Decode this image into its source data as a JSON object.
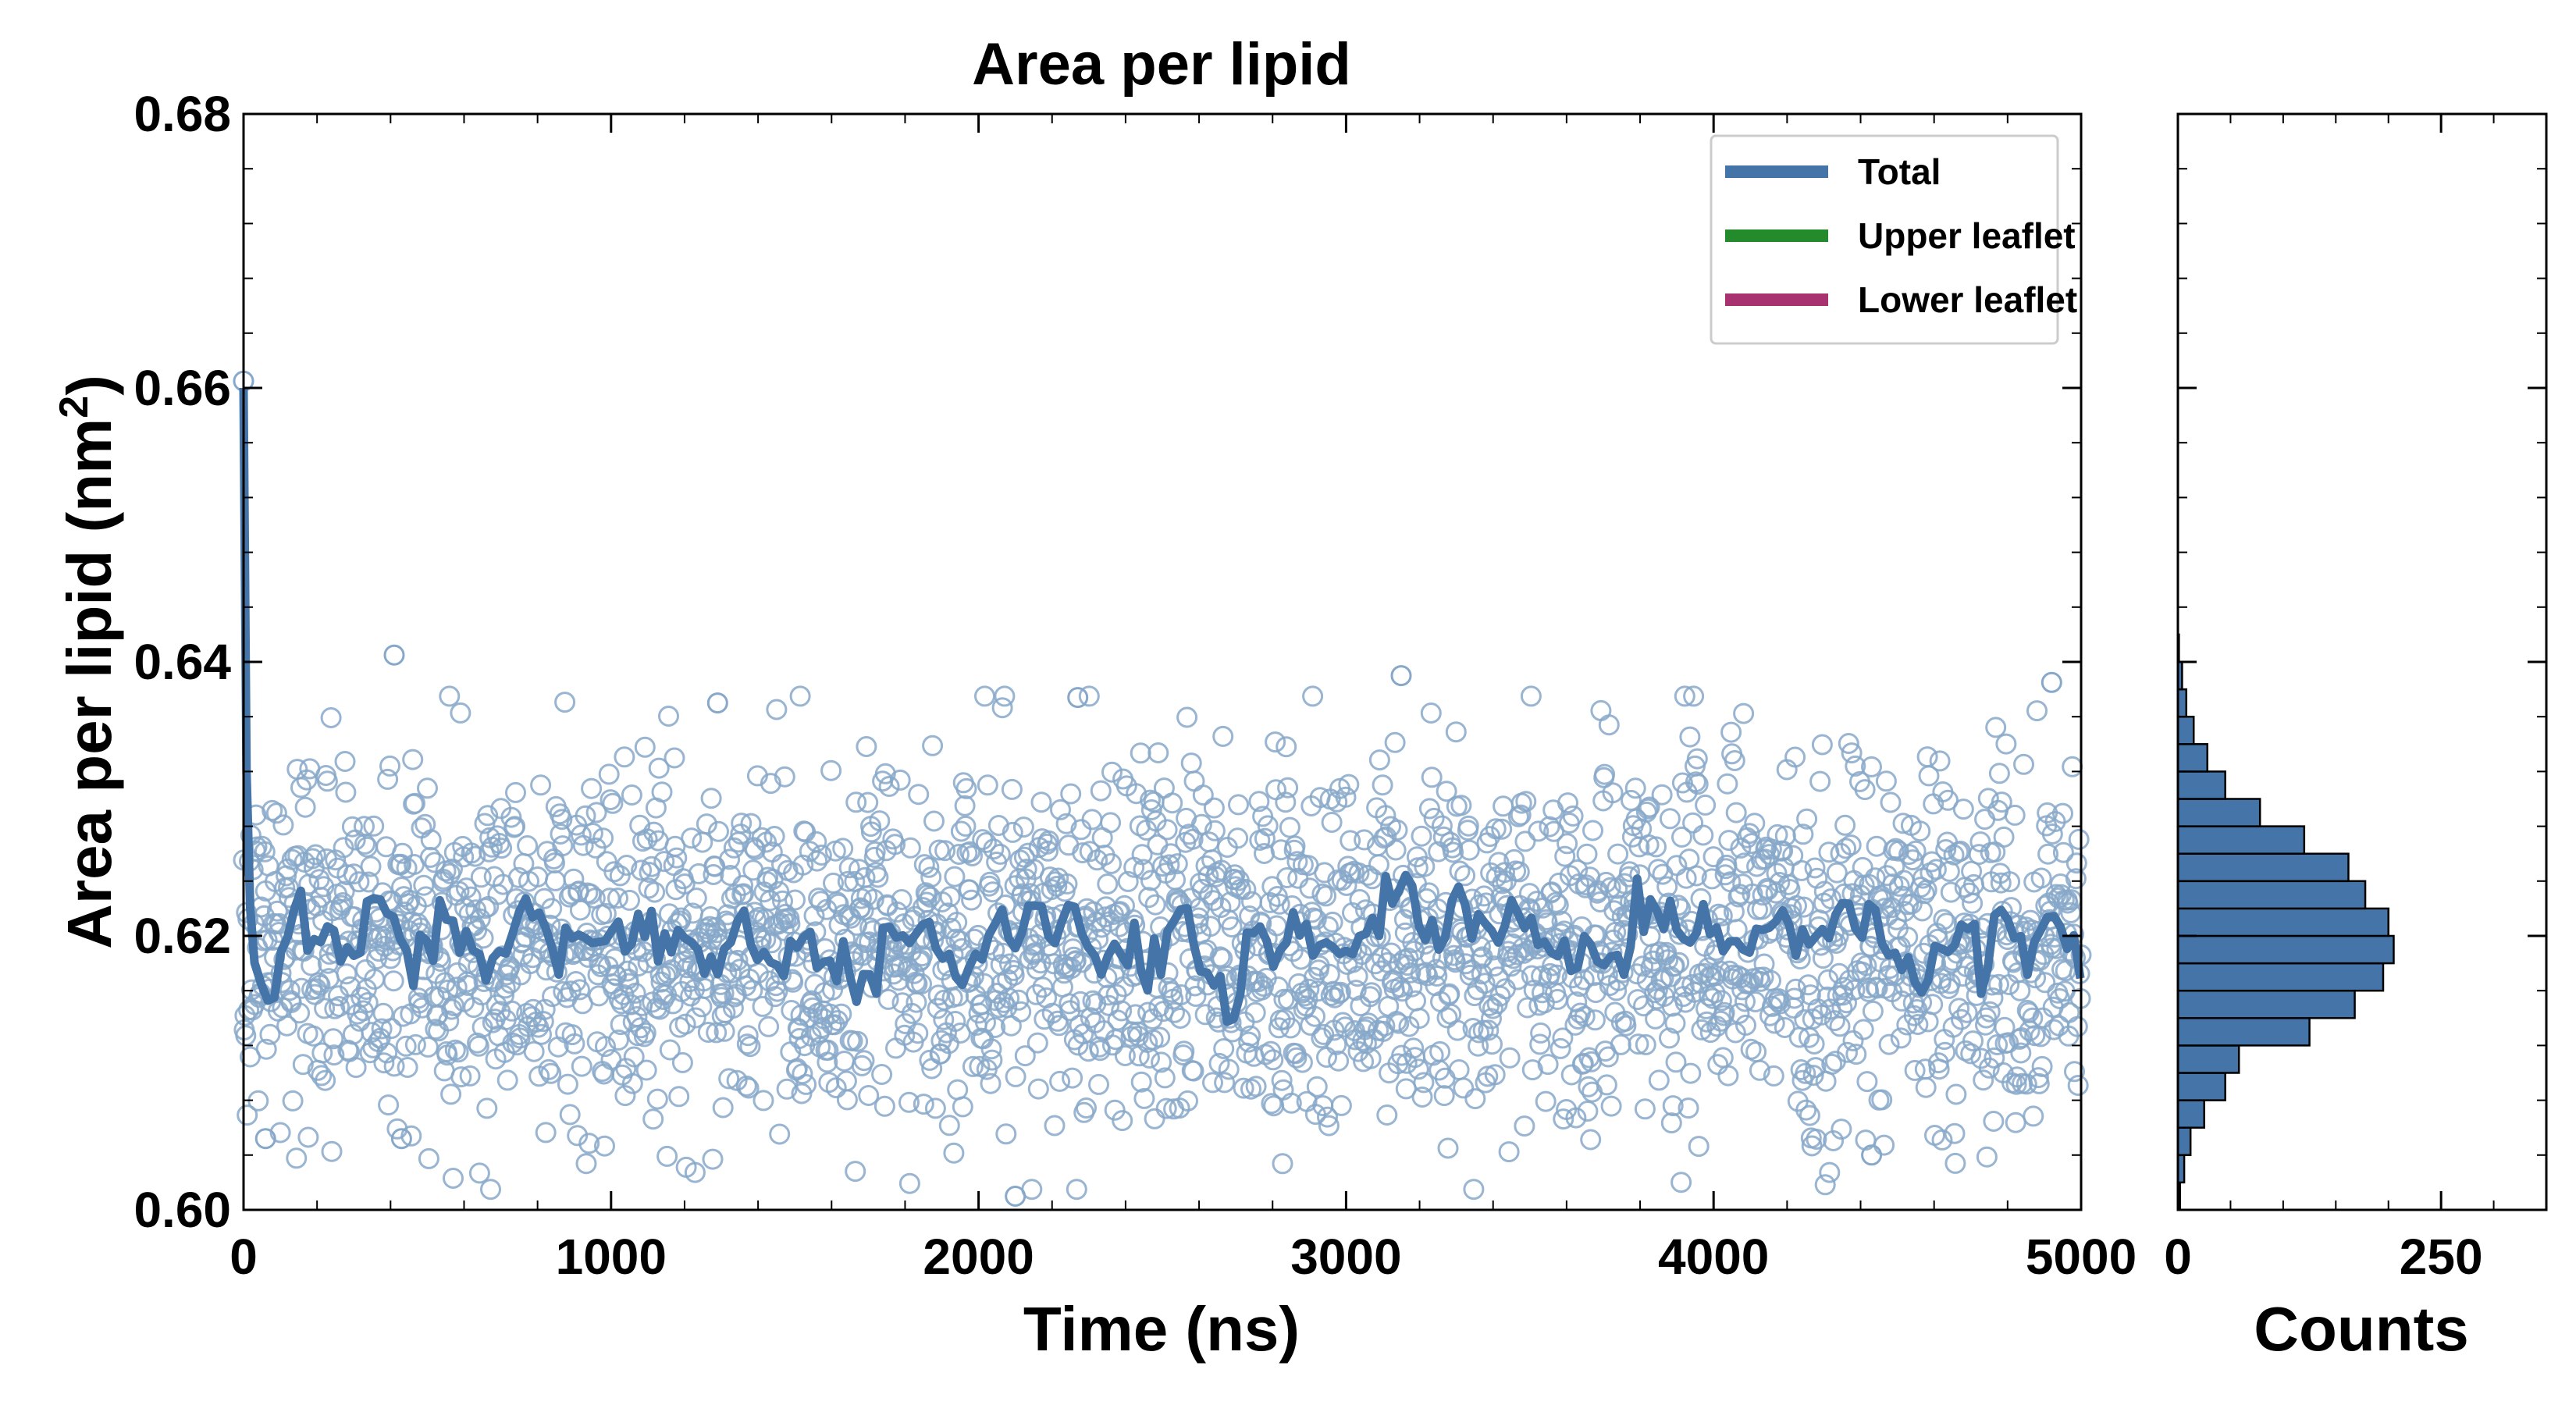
{
  "chart_data": [
    {
      "type": "scatter",
      "title": "Area per lipid",
      "xlabel": "Time (ns)",
      "ylabel": "Area per lipid (nm",
      "ylabel_sup": "2",
      "ylabel_close": ")",
      "xlim": [
        0,
        5000
      ],
      "ylim": [
        0.6,
        0.68
      ],
      "xticks": [
        "0",
        "1000",
        "2000",
        "3000",
        "4000",
        "5000"
      ],
      "yticks": [
        "0.60",
        "0.62",
        "0.64",
        "0.66",
        "0.68"
      ],
      "grid": false,
      "legend_position": "top-right",
      "legend": [
        {
          "name": "Total",
          "color": "#4575a8"
        },
        {
          "name": "Upper leaflet",
          "color": "#238b2c"
        },
        {
          "name": "Lower leaflet",
          "color": "#a8316f"
        }
      ],
      "series": [
        {
          "name": "Total",
          "kind": "scatter",
          "marker": "open-circle",
          "color": "#87a8c9",
          "points_summary": {
            "count": 2500,
            "mean": 0.6195,
            "std": 0.0065,
            "x_range": [
              0,
              5000
            ]
          },
          "notable_points": [
            {
              "x": 0,
              "y": 0.6605
            },
            {
              "x": 410,
              "y": 0.6405
            },
            {
              "x": 3150,
              "y": 0.639
            },
            {
              "x": 4920,
              "y": 0.6385
            },
            {
              "x": 2270,
              "y": 0.6374
            },
            {
              "x": 1290,
              "y": 0.637
            },
            {
              "x": 2100,
              "y": 0.601
            },
            {
              "x": 4430,
              "y": 0.604
            },
            {
              "x": 430,
              "y": 0.6052
            },
            {
              "x": 60,
              "y": 0.6052
            }
          ]
        },
        {
          "name": "Total",
          "kind": "line",
          "description": "running average",
          "color": "#4575a8",
          "values_summary": {
            "mean": 0.6195,
            "amplitude": 0.0025,
            "start_value": 0.66
          }
        }
      ]
    },
    {
      "type": "bar",
      "orientation": "horizontal",
      "xlabel": "Counts",
      "xlim": [
        0,
        350
      ],
      "xticks": [
        "0",
        "250"
      ],
      "ylim": [
        0.6,
        0.68
      ],
      "color": "#4575a8",
      "bin_centers": [
        0.601,
        0.603,
        0.605,
        0.607,
        0.609,
        0.611,
        0.613,
        0.615,
        0.617,
        0.619,
        0.621,
        0.623,
        0.625,
        0.627,
        0.629,
        0.631,
        0.633,
        0.635,
        0.637,
        0.639,
        0.641
      ],
      "counts": [
        2,
        6,
        12,
        25,
        45,
        58,
        125,
        168,
        195,
        205,
        200,
        178,
        162,
        120,
        78,
        45,
        28,
        15,
        8,
        4,
        1
      ]
    }
  ]
}
